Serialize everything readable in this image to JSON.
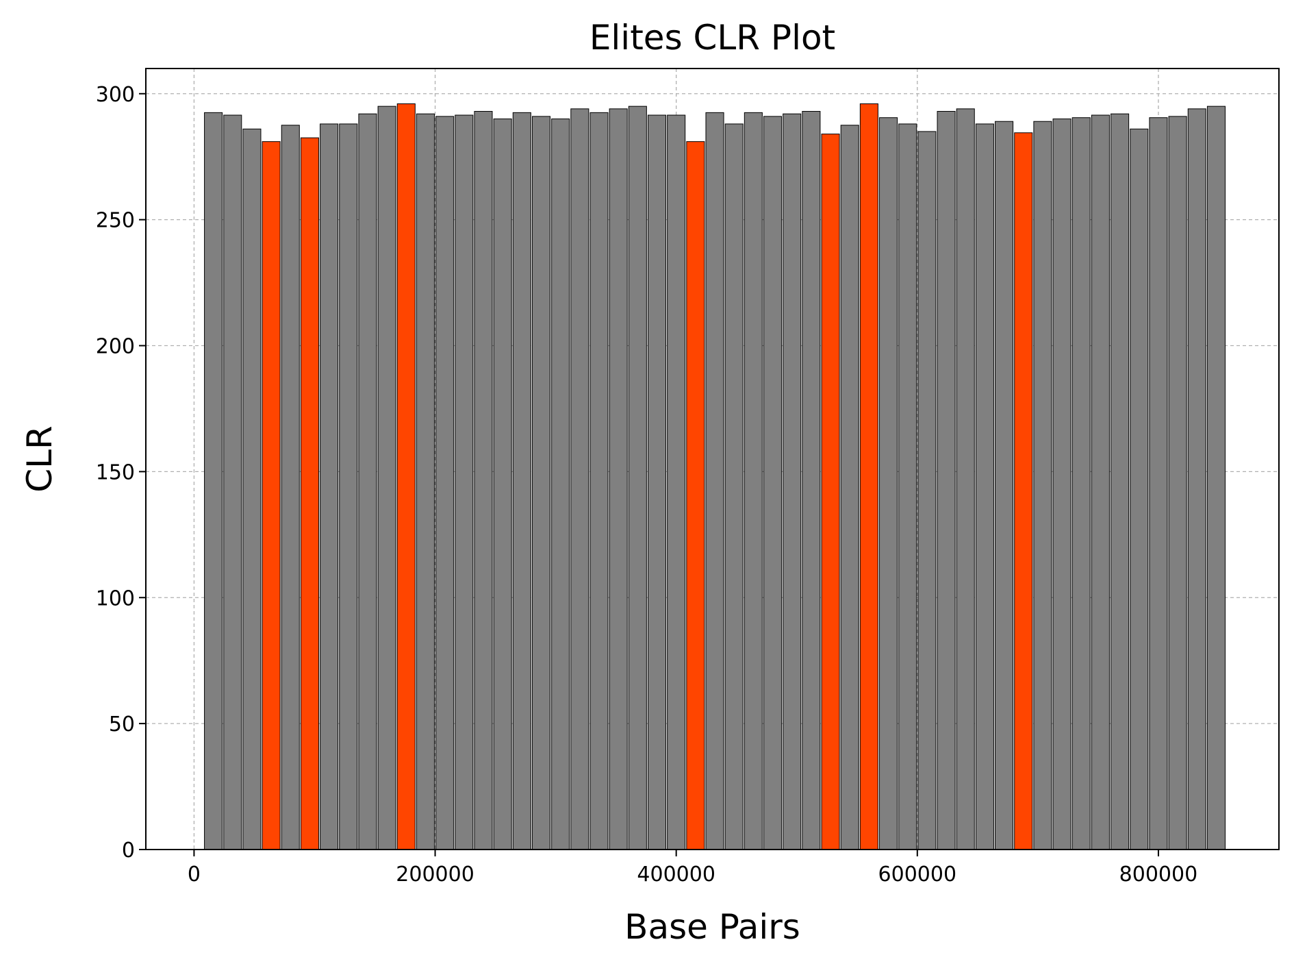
{
  "chart_data": {
    "type": "bar",
    "title": "Elites CLR Plot",
    "xlabel": "Base Pairs",
    "ylabel": "CLR",
    "xlim": [
      -40000,
      900000
    ],
    "ylim": [
      0,
      300
    ],
    "grid": true,
    "xticks": [
      0,
      200000,
      400000,
      600000,
      800000
    ],
    "xtick_labels": [
      "0",
      "200000",
      "400000",
      "600000",
      "800000"
    ],
    "yticks": [
      0,
      50,
      100,
      150,
      200,
      250,
      300
    ],
    "ytick_labels": [
      "0",
      "50",
      "100",
      "150",
      "200",
      "250",
      "300"
    ],
    "bar_width": 14800,
    "colors": {
      "normal": "#808080",
      "elite": "#ff4500",
      "edge": "#000000",
      "grid": "#b0b0b0"
    },
    "bars": [
      {
        "x": 16000,
        "y": 292.5,
        "elite": false
      },
      {
        "x": 32000,
        "y": 291.5,
        "elite": false
      },
      {
        "x": 48000,
        "y": 286,
        "elite": false
      },
      {
        "x": 64000,
        "y": 281,
        "elite": true
      },
      {
        "x": 80000,
        "y": 287.5,
        "elite": false
      },
      {
        "x": 96000,
        "y": 282.5,
        "elite": true
      },
      {
        "x": 112000,
        "y": 288,
        "elite": false
      },
      {
        "x": 128000,
        "y": 288,
        "elite": false
      },
      {
        "x": 144000,
        "y": 292,
        "elite": false
      },
      {
        "x": 160000,
        "y": 295,
        "elite": false
      },
      {
        "x": 176000,
        "y": 296,
        "elite": true
      },
      {
        "x": 192000,
        "y": 292,
        "elite": false
      },
      {
        "x": 208000,
        "y": 291,
        "elite": false
      },
      {
        "x": 224000,
        "y": 291.5,
        "elite": false
      },
      {
        "x": 240000,
        "y": 293,
        "elite": false
      },
      {
        "x": 256000,
        "y": 290,
        "elite": false
      },
      {
        "x": 272000,
        "y": 292.5,
        "elite": false
      },
      {
        "x": 288000,
        "y": 291,
        "elite": false
      },
      {
        "x": 304000,
        "y": 290,
        "elite": false
      },
      {
        "x": 320000,
        "y": 294,
        "elite": false
      },
      {
        "x": 336000,
        "y": 292.5,
        "elite": false
      },
      {
        "x": 352000,
        "y": 294,
        "elite": false
      },
      {
        "x": 368000,
        "y": 295,
        "elite": false
      },
      {
        "x": 384000,
        "y": 291.5,
        "elite": false
      },
      {
        "x": 400000,
        "y": 291.5,
        "elite": false
      },
      {
        "x": 416000,
        "y": 281,
        "elite": true
      },
      {
        "x": 432000,
        "y": 292.5,
        "elite": false
      },
      {
        "x": 448000,
        "y": 288,
        "elite": false
      },
      {
        "x": 464000,
        "y": 292.5,
        "elite": false
      },
      {
        "x": 480000,
        "y": 291,
        "elite": false
      },
      {
        "x": 496000,
        "y": 292,
        "elite": false
      },
      {
        "x": 512000,
        "y": 293,
        "elite": false
      },
      {
        "x": 528000,
        "y": 284,
        "elite": true
      },
      {
        "x": 544000,
        "y": 287.5,
        "elite": false
      },
      {
        "x": 560000,
        "y": 296,
        "elite": true
      },
      {
        "x": 576000,
        "y": 290.5,
        "elite": false
      },
      {
        "x": 592000,
        "y": 288,
        "elite": false
      },
      {
        "x": 608000,
        "y": 285,
        "elite": false
      },
      {
        "x": 624000,
        "y": 293,
        "elite": false
      },
      {
        "x": 640000,
        "y": 294,
        "elite": false
      },
      {
        "x": 656000,
        "y": 288,
        "elite": false
      },
      {
        "x": 672000,
        "y": 289,
        "elite": false
      },
      {
        "x": 688000,
        "y": 284.5,
        "elite": true
      },
      {
        "x": 704000,
        "y": 289,
        "elite": false
      },
      {
        "x": 720000,
        "y": 290,
        "elite": false
      },
      {
        "x": 736000,
        "y": 290.5,
        "elite": false
      },
      {
        "x": 752000,
        "y": 291.5,
        "elite": false
      },
      {
        "x": 768000,
        "y": 292,
        "elite": false
      },
      {
        "x": 784000,
        "y": 286,
        "elite": false
      },
      {
        "x": 800000,
        "y": 290.5,
        "elite": false
      },
      {
        "x": 816000,
        "y": 291,
        "elite": false
      },
      {
        "x": 832000,
        "y": 294,
        "elite": false
      },
      {
        "x": 848000,
        "y": 295,
        "elite": false
      }
    ]
  }
}
